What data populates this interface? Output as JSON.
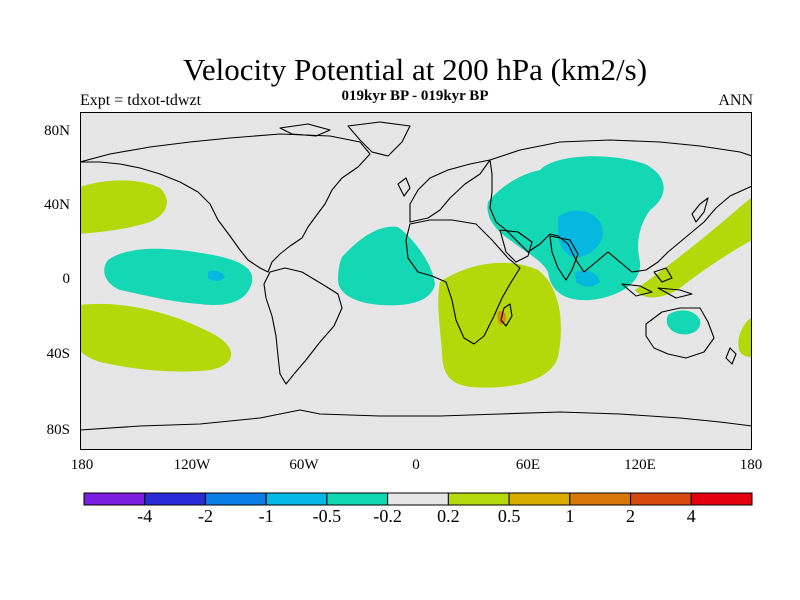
{
  "title": "Velocity Potential at 200 hPa (km2/s)",
  "subtitle_left": "Expt = tdxot-tdwzt",
  "subtitle_center": "019kyr BP - 019kyr BP",
  "subtitle_right": "ANN",
  "y_ticks": [
    "80N",
    "40N",
    "0",
    "40S",
    "80S"
  ],
  "x_ticks": [
    "180",
    "120W",
    "60W",
    "0",
    "60E",
    "120E",
    "180"
  ],
  "colorbar": {
    "colors": [
      "#7b1ee0",
      "#2a2ad8",
      "#0a7ee6",
      "#06b8e6",
      "#0fd9b2",
      "#e6e6e6",
      "#b5d90c",
      "#d8ad00",
      "#d9780a",
      "#d9480f",
      "#e3000f"
    ],
    "labels": [
      "-4",
      "-2",
      "-1",
      "-0.5",
      "-0.2",
      "0.2",
      "0.5",
      "1",
      "2",
      "4"
    ]
  },
  "map_colors": {
    "background": "#e6e6e6",
    "neg_light": "#14d8b4",
    "neg_mid": "#06b8e0",
    "pos_light": "#b4d80a",
    "pos_mid": "#d88a12"
  }
}
